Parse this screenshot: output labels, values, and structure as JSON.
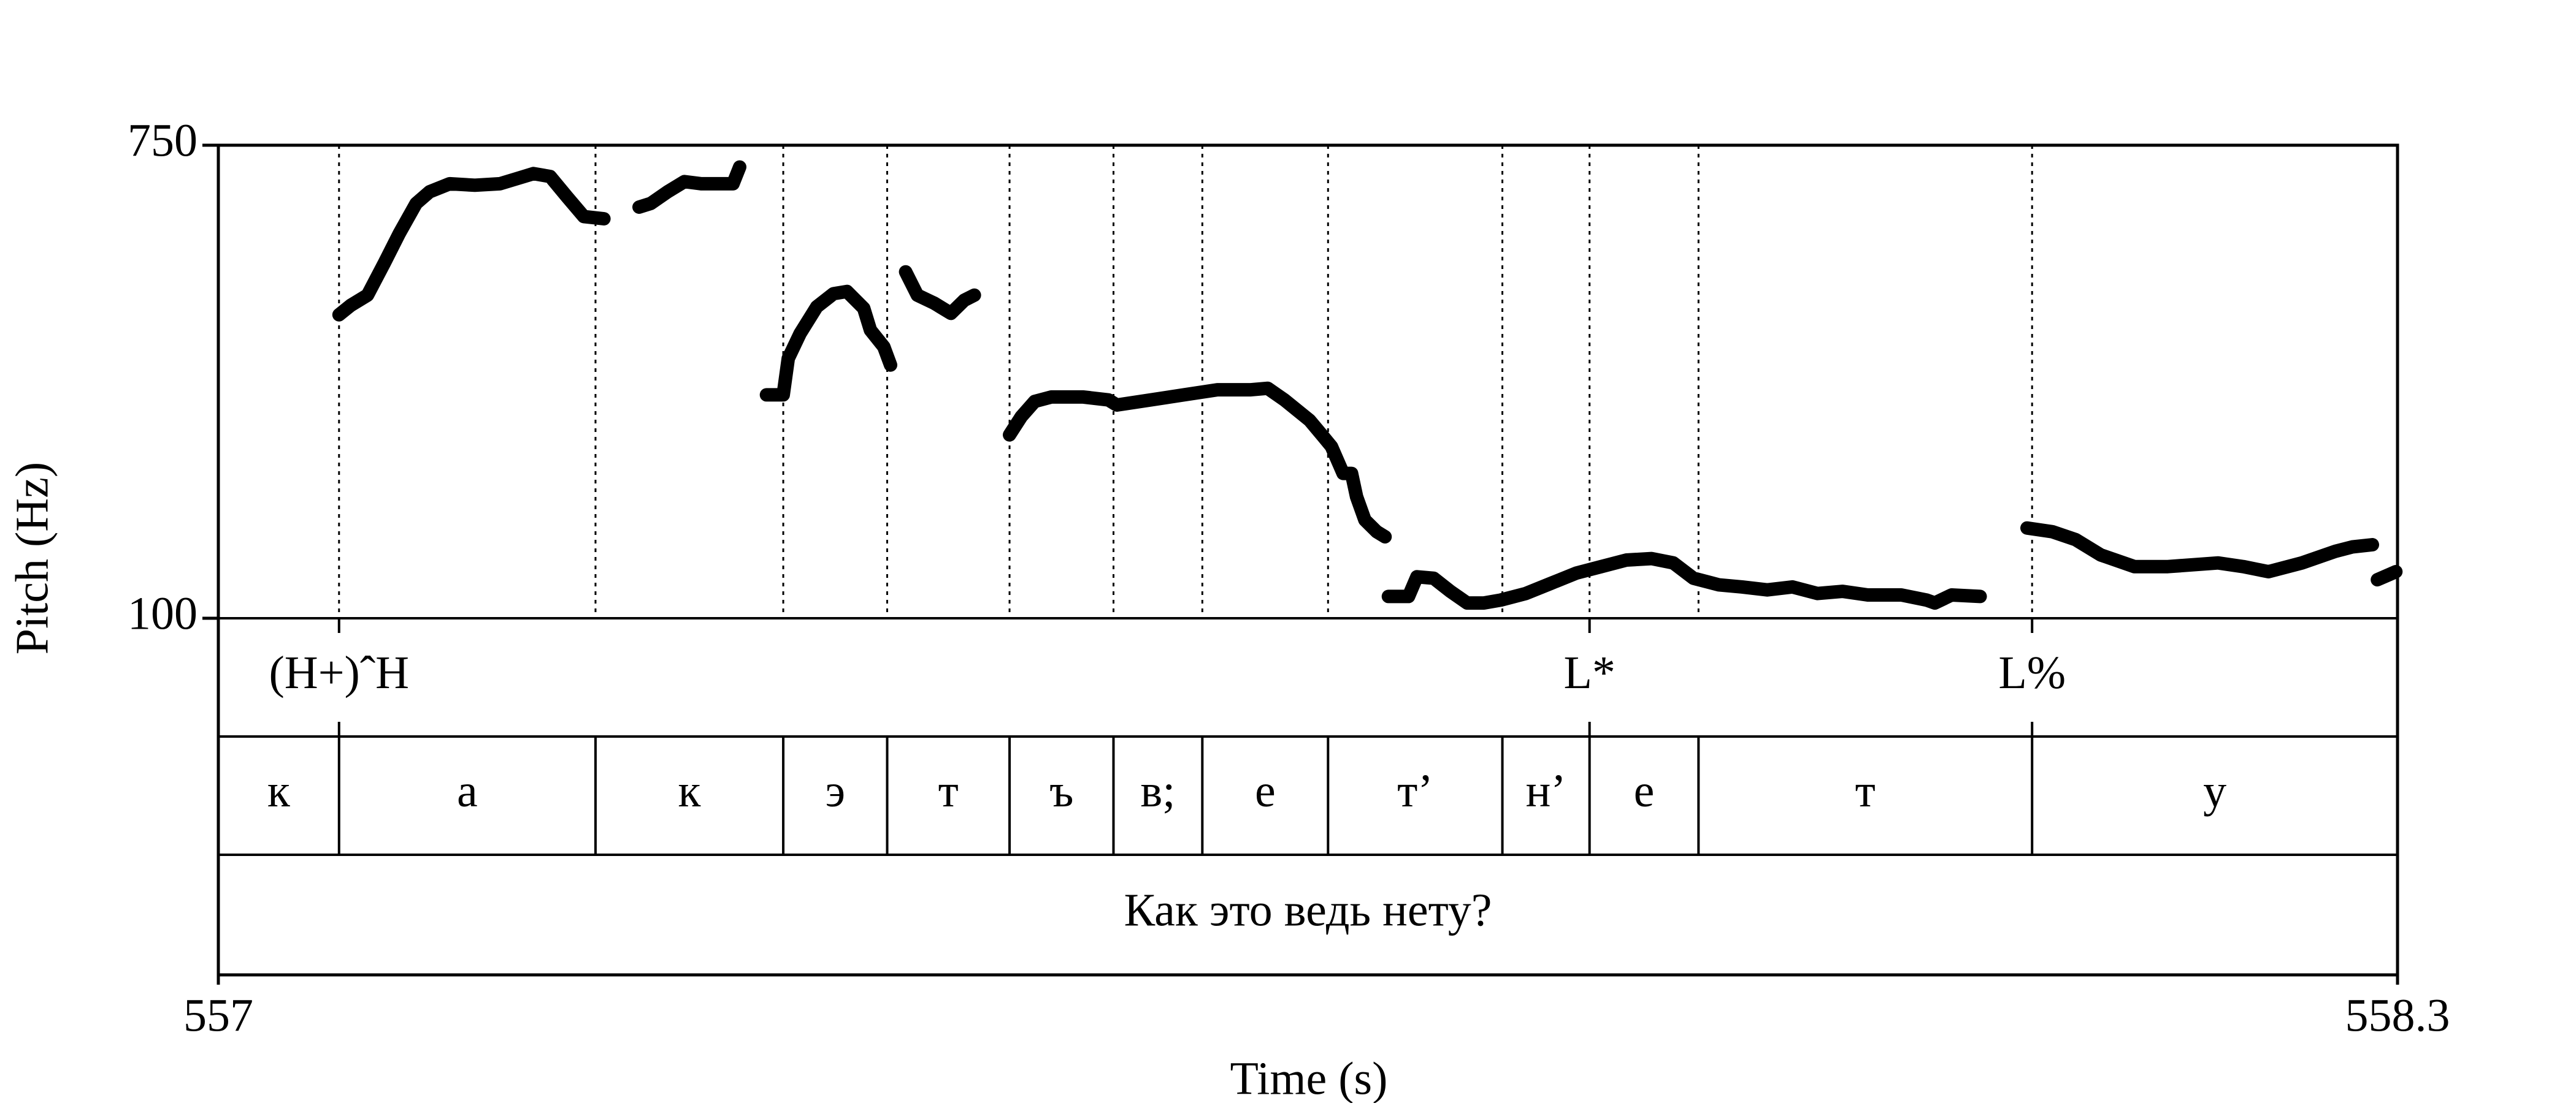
{
  "chart_data": {
    "type": "line",
    "xlabel": "Time (s)",
    "ylabel": "Pitch (Hz)",
    "xlim": [
      557,
      558.3
    ],
    "xticks": [
      557,
      558.3
    ],
    "ylim": [
      100,
      750
    ],
    "yticks": [
      100,
      750
    ],
    "color": "#000000",
    "x": [
      557.072,
      557.079,
      557.089,
      557.099,
      557.108,
      557.118,
      557.126,
      557.138,
      557.153,
      557.168,
      557.178,
      557.188,
      557.198,
      557.208,
      557.218,
      557.23,
      null,
      557.242,
      null,
      557.248,
      null,
      557.251,
      557.258,
      557.268,
      557.278,
      557.288,
      557.307,
      557.311,
      null,
      557.327,
      557.337,
      557.34,
      557.347,
      557.357,
      557.367,
      557.375,
      557.385,
      557.389,
      557.397,
      557.401,
      null,
      557.41,
      557.417,
      557.427,
      557.437,
      557.445,
      557.451,
      null,
      557.472,
      557.479,
      557.487,
      557.497,
      557.516,
      557.531,
      557.536,
      557.556,
      557.576,
      557.596,
      557.616,
      557.626,
      557.636,
      557.651,
      557.659,
      557.664,
      557.671,
      557.676,
      557.679,
      557.684,
      557.691,
      557.696,
      null,
      557.698,
      557.71,
      557.715,
      557.725,
      557.735,
      557.745,
      557.755,
      557.765,
      557.78,
      557.795,
      557.81,
      557.825,
      557.84,
      557.855,
      557.868,
      557.88,
      557.895,
      557.909,
      557.924,
      557.939,
      557.954,
      557.969,
      557.984,
      558.004,
      558.019,
      558.024,
      558.034,
      558.051,
      null,
      558.079,
      558.094,
      558.108,
      558.123,
      558.143,
      558.163,
      558.193,
      558.208,
      558.223,
      558.243,
      558.263,
      558.273,
      558.285,
      null,
      558.288,
      558.299
    ],
    "values": [
      517,
      530,
      544,
      588,
      629,
      670,
      686,
      697,
      695,
      697,
      704,
      711,
      707,
      679,
      652,
      649,
      null,
      727,
      null,
      713,
      null,
      665,
      670,
      686,
      700,
      697,
      697,
      720,
      null,
      407,
      407,
      457,
      491,
      528,
      546,
      549,
      526,
      496,
      473,
      448,
      null,
      576,
      544,
      533,
      519,
      537,
      544,
      null,
      352,
      377,
      398,
      404,
      404,
      400,
      393,
      400,
      407,
      414,
      414,
      416,
      400,
      372,
      350,
      336,
      299,
      299,
      267,
      235,
      219,
      212,
      null,
      130,
      130,
      157,
      155,
      137,
      121,
      121,
      125,
      134,
      148,
      162,
      171,
      180,
      182,
      176,
      155,
      146,
      143,
      139,
      143,
      134,
      137,
      132,
      132,
      125,
      121,
      132,
      130,
      null,
      224,
      219,
      208,
      187,
      171,
      171,
      176,
      171,
      164,
      176,
      192,
      198,
      201,
      null,
      153,
      164
    ],
    "tiers": [
      {
        "type": "points",
        "times": [
          557.072,
          557.818,
          558.082
        ],
        "labels": [
          "(H+)ˆH",
          "L*",
          "L%"
        ]
      },
      {
        "type": "intervals",
        "boundaries": [
          557.072,
          557.225,
          557.337,
          557.399,
          557.472,
          557.534,
          557.587,
          557.662,
          557.766,
          557.818,
          557.883,
          558.082
        ],
        "labels": [
          "к",
          "а",
          "к",
          "э",
          "т",
          "ъ",
          "в;",
          "е",
          "т’",
          "н’",
          "е",
          "т",
          "у"
        ]
      },
      {
        "type": "intervals",
        "boundaries": [],
        "labels": [
          "Как это ведь нету?"
        ]
      }
    ]
  }
}
